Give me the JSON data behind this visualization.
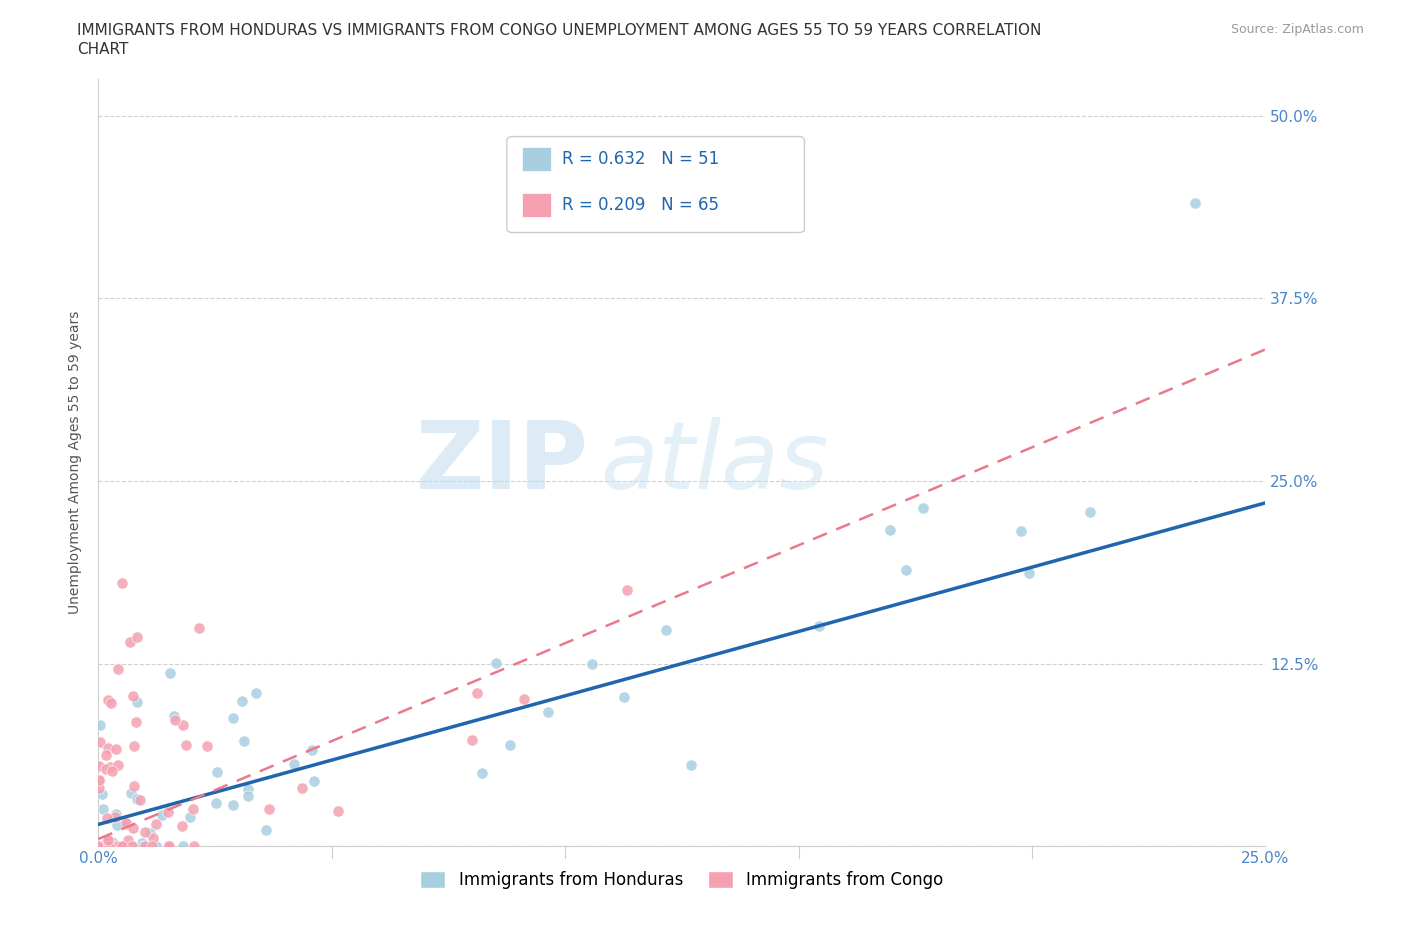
{
  "title_line1": "IMMIGRANTS FROM HONDURAS VS IMMIGRANTS FROM CONGO UNEMPLOYMENT AMONG AGES 55 TO 59 YEARS CORRELATION",
  "title_line2": "CHART",
  "source_text": "Source: ZipAtlas.com",
  "ylabel": "Unemployment Among Ages 55 to 59 years",
  "xlim": [
    0.0,
    0.25
  ],
  "ylim": [
    0.0,
    0.525
  ],
  "honduras_color": "#a8cfe0",
  "congo_color": "#f4a0b0",
  "honduras_line_color": "#2166ac",
  "congo_line_color": "#e87a8a",
  "R_honduras": 0.632,
  "N_honduras": 51,
  "R_congo": 0.209,
  "N_congo": 65,
  "legend_label_honduras": "Immigrants from Honduras",
  "legend_label_congo": "Immigrants from Congo",
  "watermark_zip": "ZIP",
  "watermark_atlas": "atlas",
  "honduras_line_x0": 0.0,
  "honduras_line_y0": 0.015,
  "honduras_line_x1": 0.25,
  "honduras_line_y1": 0.235,
  "congo_line_x0": 0.0,
  "congo_line_y0": 0.005,
  "congo_line_x1": 0.25,
  "congo_line_y1": 0.34,
  "title_fontsize": 11,
  "axis_label_fontsize": 10,
  "tick_fontsize": 11,
  "legend_fontsize": 12
}
